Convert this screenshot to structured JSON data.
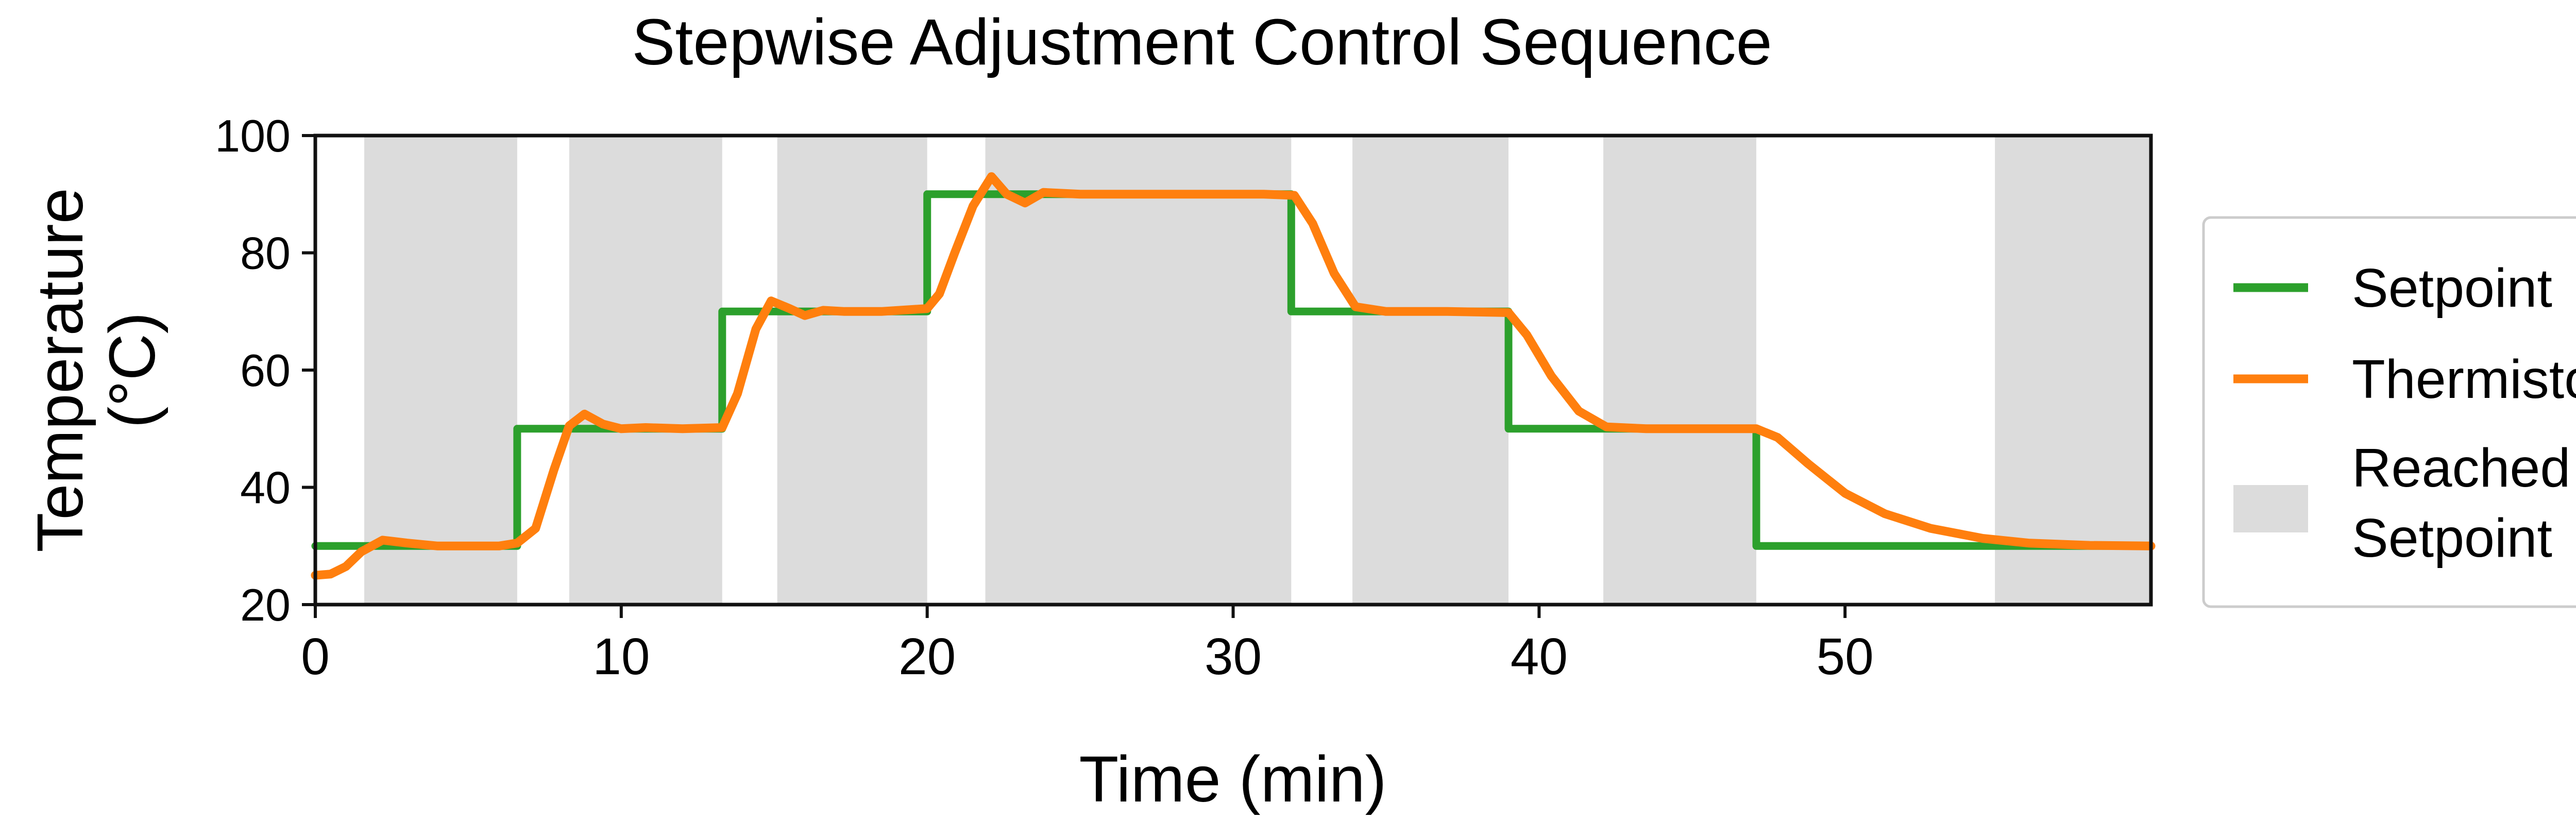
{
  "chart_data": {
    "type": "line",
    "title": "Stepwise Adjustment Control Sequence",
    "xlabel": "Time (min)",
    "ylabel": [
      "Temperature",
      "(°C)"
    ],
    "xlim": [
      0,
      60
    ],
    "ylim": [
      20,
      100
    ],
    "xticks": [
      0,
      10,
      20,
      30,
      40,
      50
    ],
    "yticks": [
      20,
      40,
      60,
      80,
      100
    ],
    "grid": false,
    "legend_position": "right, outside plot",
    "series": [
      {
        "name": "Setpoint",
        "color": "#2ca02c",
        "style": "step",
        "x": [
          0,
          6.6,
          6.6,
          13.3,
          13.3,
          20.0,
          20.0,
          31.9,
          31.9,
          39.0,
          39.0,
          47.1,
          47.1,
          60
        ],
        "y": [
          30,
          30,
          50,
          50,
          70,
          70,
          90,
          90,
          70,
          70,
          50,
          50,
          30,
          30
        ]
      },
      {
        "name": "Thermistor",
        "color": "#ff7f0e",
        "style": "line",
        "x": [
          0,
          0.5,
          1.0,
          1.5,
          2.2,
          3.0,
          4.0,
          6.0,
          6.6,
          7.2,
          7.8,
          8.3,
          8.8,
          9.4,
          10.0,
          10.8,
          12.0,
          13.3,
          13.8,
          14.4,
          14.9,
          15.5,
          16.0,
          16.6,
          17.3,
          18.5,
          20.0,
          20.4,
          20.9,
          21.5,
          22.1,
          22.6,
          23.2,
          23.8,
          25.0,
          27.0,
          29.0,
          31.0,
          32.0,
          32.6,
          33.3,
          34.0,
          35.0,
          37.0,
          39.0,
          39.6,
          40.4,
          41.3,
          42.2,
          43.5,
          45.0,
          47.1,
          47.8,
          48.8,
          50.0,
          51.3,
          52.8,
          54.5,
          56.0,
          58.0,
          60.0
        ],
        "y": [
          25.0,
          25.2,
          26.5,
          29.0,
          31.0,
          30.5,
          30.0,
          30.0,
          30.5,
          33.0,
          43.0,
          50.5,
          52.5,
          50.8,
          50.0,
          50.2,
          50.0,
          50.2,
          56.0,
          67.0,
          71.8,
          70.5,
          69.3,
          70.2,
          70.0,
          70.0,
          70.5,
          73.0,
          80.0,
          88.0,
          93.0,
          90.0,
          88.5,
          90.3,
          90.0,
          90.0,
          90.0,
          90.0,
          89.8,
          85.0,
          76.5,
          70.8,
          70.0,
          70.0,
          69.8,
          66.0,
          59.0,
          53.0,
          50.3,
          50.0,
          50.0,
          50.0,
          48.5,
          44.0,
          39.0,
          35.5,
          33.0,
          31.3,
          30.5,
          30.1,
          30.0
        ]
      }
    ],
    "shaded_regions": {
      "name": "Reached Setpoint",
      "color": "#dcdcdc",
      "ranges": [
        [
          1.6,
          6.6
        ],
        [
          8.3,
          13.3
        ],
        [
          15.1,
          20.0
        ],
        [
          21.9,
          31.9
        ],
        [
          33.9,
          39.0
        ],
        [
          42.1,
          47.1
        ],
        [
          54.9,
          60.0
        ]
      ]
    },
    "legend": {
      "entries": [
        {
          "label": "Setpoint",
          "kind": "line",
          "color": "#2ca02c"
        },
        {
          "label": "Thermistor",
          "kind": "line",
          "color": "#ff7f0e"
        },
        {
          "label": [
            "Reached",
            "Setpoint"
          ],
          "kind": "patch",
          "color": "#dcdcdc"
        }
      ]
    }
  }
}
